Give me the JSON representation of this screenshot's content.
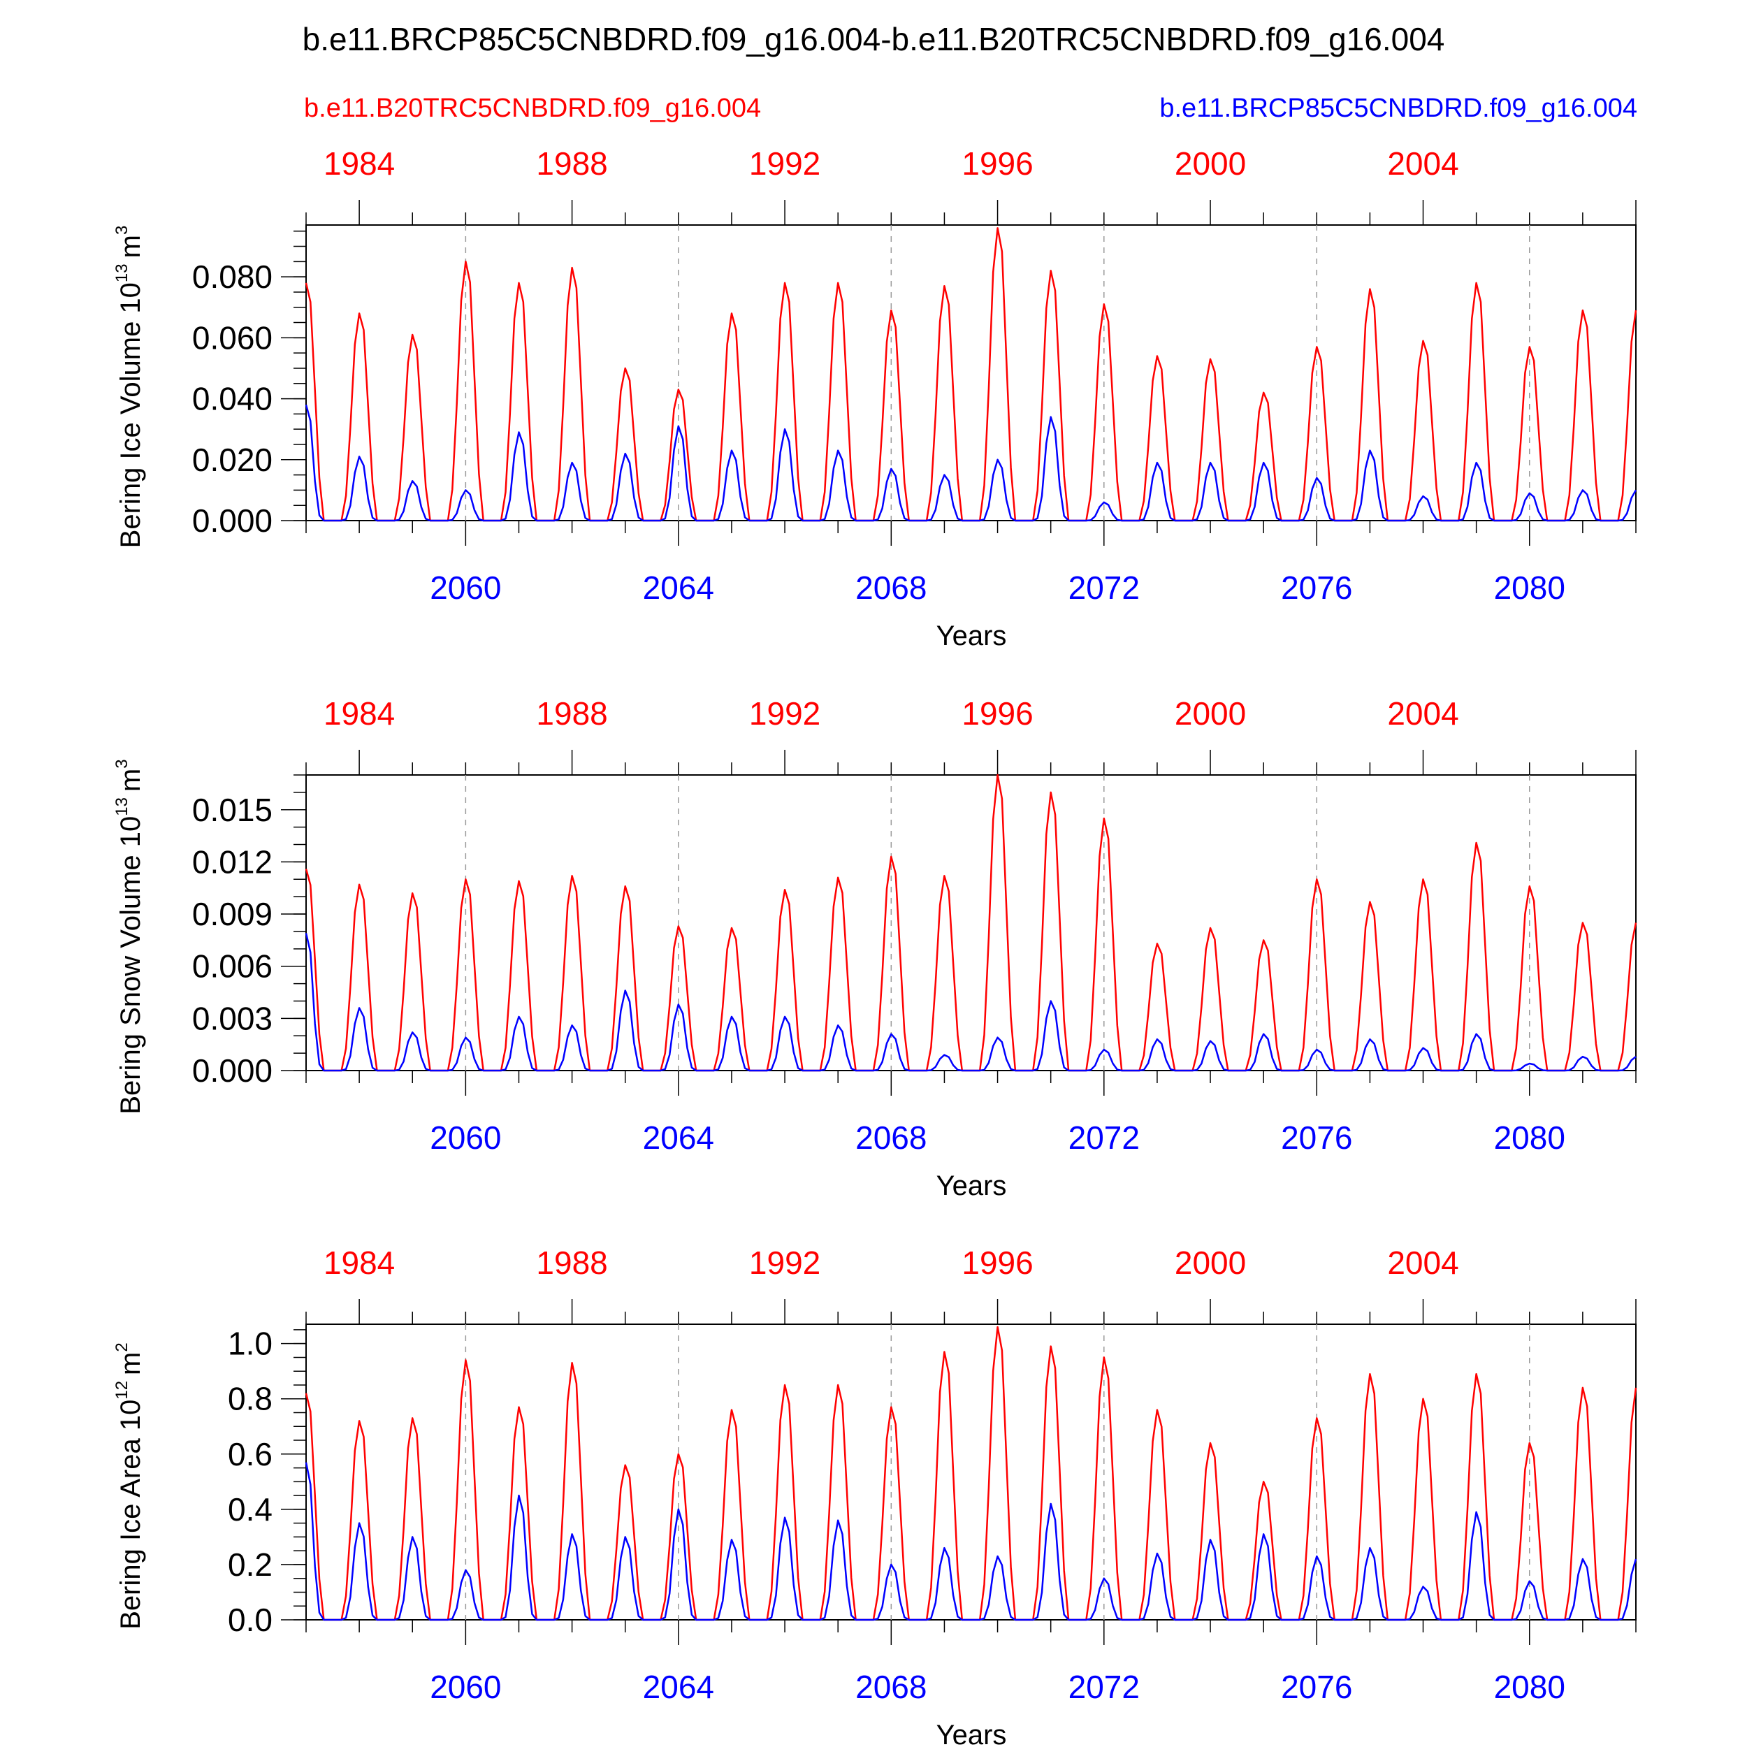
{
  "title": "b.e11.BRCP85C5CNBDRD.f09_g16.004-b.e11.B20TRC5CNBDRD.f09_g16.004",
  "legend": {
    "left_label": "b.e11.B20TRC5CNBDRD.f09_g16.004",
    "right_label": "b.e11.BRCP85C5CNBDRD.f09_g16.004",
    "left_color": "#ff0000",
    "right_color": "#0000ff"
  },
  "colors": {
    "red": "#ff0000",
    "blue": "#0000ff",
    "axis": "#000000",
    "refline": "#999999"
  },
  "chart_data": [
    {
      "type": "line",
      "ylabel": "Bering Ice Volume 10",
      "ylabel_exp": "13",
      "ylabel_unit": "m",
      "ylabel_unit_exp": "3",
      "xlabel": "Years",
      "ylim": [
        0,
        0.097
      ],
      "yticks": [
        "0.000",
        "0.020",
        "0.040",
        "0.060",
        "0.080"
      ],
      "ytick_values": [
        0,
        0.02,
        0.04,
        0.06,
        0.08
      ],
      "ytick_minor_step": 0.005,
      "top_axis_color": "red",
      "top_ticks": [
        "1984",
        "1988",
        "1992",
        "1996",
        "2000",
        "2004"
      ],
      "bottom_axis_color": "blue",
      "bottom_ticks": [
        "2060",
        "2064",
        "2068",
        "2072",
        "2076",
        "2080"
      ],
      "series": [
        {
          "name": "b.e11.B20TRC5CNBDRD.f09_g16.004",
          "color": "red",
          "peaks": [
            0.078,
            0.068,
            0.061,
            0.085,
            0.078,
            0.083,
            0.05,
            0.043,
            0.068,
            0.078,
            0.078,
            0.069,
            0.077,
            0.096,
            0.082,
            0.071,
            0.054,
            0.053,
            0.042,
            0.057,
            0.076,
            0.059,
            0.078,
            0.057,
            0.069
          ]
        },
        {
          "name": "b.e11.BRCP85C5CNBDRD.f09_g16.004",
          "color": "blue",
          "peaks": [
            0.038,
            0.021,
            0.013,
            0.01,
            0.029,
            0.019,
            0.022,
            0.031,
            0.023,
            0.03,
            0.023,
            0.017,
            0.015,
            0.02,
            0.034,
            0.006,
            0.019,
            0.019,
            0.019,
            0.014,
            0.023,
            0.008,
            0.019,
            0.009,
            0.01
          ]
        }
      ]
    },
    {
      "type": "line",
      "ylabel": "Bering Snow Volume 10",
      "ylabel_exp": "13",
      "ylabel_unit": "m",
      "ylabel_unit_exp": "3",
      "xlabel": "Years",
      "ylim": [
        0,
        0.017
      ],
      "yticks": [
        "0.000",
        "0.003",
        "0.006",
        "0.009",
        "0.012",
        "0.015"
      ],
      "ytick_values": [
        0,
        0.003,
        0.006,
        0.009,
        0.012,
        0.015
      ],
      "ytick_minor_step": 0.001,
      "top_axis_color": "red",
      "top_ticks": [
        "1984",
        "1988",
        "1992",
        "1996",
        "2000",
        "2004"
      ],
      "bottom_axis_color": "blue",
      "bottom_ticks": [
        "2060",
        "2064",
        "2068",
        "2072",
        "2076",
        "2080"
      ],
      "series": [
        {
          "name": "b.e11.B20TRC5CNBDRD.f09_g16.004",
          "color": "red",
          "peaks": [
            0.0116,
            0.0107,
            0.0102,
            0.011,
            0.0109,
            0.0112,
            0.0106,
            0.0083,
            0.0082,
            0.0104,
            0.0111,
            0.0123,
            0.0112,
            0.017,
            0.016,
            0.0145,
            0.0073,
            0.0082,
            0.0075,
            0.011,
            0.0097,
            0.011,
            0.0131,
            0.0106,
            0.0085
          ]
        },
        {
          "name": "b.e11.BRCP85C5CNBDRD.f09_g16.004",
          "color": "blue",
          "peaks": [
            0.0079,
            0.0036,
            0.0022,
            0.0019,
            0.0031,
            0.0026,
            0.0046,
            0.0038,
            0.0031,
            0.0031,
            0.0026,
            0.0021,
            0.0009,
            0.0019,
            0.004,
            0.0012,
            0.0018,
            0.0017,
            0.0021,
            0.0012,
            0.0018,
            0.0013,
            0.0021,
            0.0004,
            0.0008
          ]
        }
      ]
    },
    {
      "type": "line",
      "ylabel": "Bering Ice Area 10",
      "ylabel_exp": "12",
      "ylabel_unit": "m",
      "ylabel_unit_exp": "2",
      "xlabel": "Years",
      "ylim": [
        0,
        1.07
      ],
      "yticks": [
        "0.0",
        "0.2",
        "0.4",
        "0.6",
        "0.8",
        "1.0"
      ],
      "ytick_values": [
        0,
        0.2,
        0.4,
        0.6,
        0.8,
        1.0
      ],
      "ytick_minor_step": 0.05,
      "top_axis_color": "red",
      "top_ticks": [
        "1984",
        "1988",
        "1992",
        "1996",
        "2000",
        "2004"
      ],
      "bottom_axis_color": "blue",
      "bottom_ticks": [
        "2060",
        "2064",
        "2068",
        "2072",
        "2076",
        "2080"
      ],
      "series": [
        {
          "name": "b.e11.B20TRC5CNBDRD.f09_g16.004",
          "color": "red",
          "peaks": [
            0.82,
            0.72,
            0.73,
            0.94,
            0.77,
            0.93,
            0.56,
            0.6,
            0.76,
            0.85,
            0.85,
            0.77,
            0.97,
            1.06,
            0.99,
            0.95,
            0.76,
            0.64,
            0.5,
            0.73,
            0.89,
            0.8,
            0.89,
            0.64,
            0.84
          ]
        },
        {
          "name": "b.e11.BRCP85C5CNBDRD.f09_g16.004",
          "color": "blue",
          "peaks": [
            0.57,
            0.35,
            0.3,
            0.18,
            0.45,
            0.31,
            0.3,
            0.4,
            0.29,
            0.37,
            0.36,
            0.2,
            0.26,
            0.23,
            0.42,
            0.15,
            0.24,
            0.29,
            0.31,
            0.23,
            0.26,
            0.12,
            0.39,
            0.14,
            0.22
          ]
        }
      ]
    }
  ]
}
